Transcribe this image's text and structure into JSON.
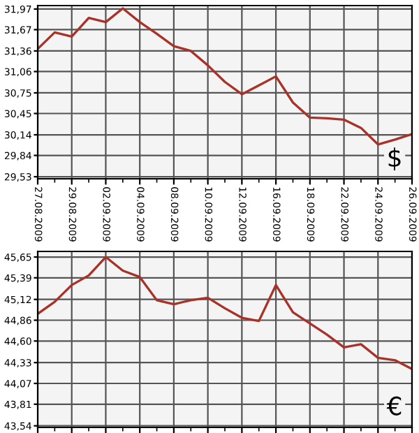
{
  "chart_data": [
    {
      "type": "line",
      "categories": [
        "27.08.2009",
        null,
        "29.08.2009",
        null,
        "02.09.2009",
        null,
        "04.09.2009",
        null,
        "08.09.2009",
        null,
        "10.09.2009",
        null,
        "12.09.2009",
        null,
        "16.09.2009",
        null,
        "18.09.2009",
        null,
        "22.09.2009",
        null,
        "24.09.2009",
        null,
        "26.09.2009"
      ],
      "series": [
        {
          "color": "#a83228",
          "values": [
            31.39,
            31.63,
            31.57,
            31.84,
            31.78,
            31.98,
            31.78,
            31.61,
            31.43,
            31.36,
            31.15,
            30.91,
            30.73,
            30.86,
            30.99,
            30.61,
            30.39,
            30.38,
            30.36,
            30.24,
            30.0,
            30.07,
            30.15
          ]
        }
      ],
      "ylim": [
        29.5,
        32.02
      ],
      "yticks": [
        {
          "value": 29.53,
          "label": "29,53"
        },
        {
          "value": 29.84,
          "label": "29,84"
        },
        {
          "value": 30.14,
          "label": "30,14"
        },
        {
          "value": 30.45,
          "label": "30,45"
        },
        {
          "value": 30.75,
          "label": "30,75"
        },
        {
          "value": 31.06,
          "label": "31,06"
        },
        {
          "value": 31.36,
          "label": "31,36"
        },
        {
          "value": 31.67,
          "label": "31,67"
        },
        {
          "value": 31.97,
          "label": "31,97"
        }
      ],
      "grid": true,
      "annotations": [
        "$"
      ]
    },
    {
      "type": "line",
      "categories": [
        "27.08.2009",
        null,
        "29.08.2009",
        null,
        "02.09.2009",
        null,
        "04.09.2009",
        null,
        "08.09.2009",
        null,
        "10.09.2009",
        null,
        "12.09.2009",
        null,
        "16.09.2009",
        null,
        "18.09.2009",
        null,
        "22.09.2009",
        null,
        "24.09.2009",
        null,
        "26.09.2009"
      ],
      "series": [
        {
          "color": "#a83228",
          "values": [
            44.94,
            45.09,
            45.3,
            45.42,
            45.65,
            45.48,
            45.4,
            45.11,
            45.06,
            45.11,
            45.14,
            45.01,
            44.89,
            44.85,
            45.3,
            44.96,
            44.82,
            44.68,
            44.52,
            44.56,
            44.39,
            44.36,
            44.25
          ]
        }
      ],
      "ylim": [
        43.52,
        45.72
      ],
      "yticks": [
        {
          "value": 43.54,
          "label": "43,54"
        },
        {
          "value": 43.81,
          "label": "43,81"
        },
        {
          "value": 44.07,
          "label": "44,07"
        },
        {
          "value": 44.33,
          "label": "44,33"
        },
        {
          "value": 44.6,
          "label": "44,60"
        },
        {
          "value": 44.86,
          "label": "44,86"
        },
        {
          "value": 45.12,
          "label": "45,12"
        },
        {
          "value": 45.39,
          "label": "45,39"
        },
        {
          "value": 45.65,
          "label": "45,65"
        }
      ],
      "grid": true,
      "tick_labels": "y",
      "annotations": [
        "€"
      ]
    }
  ]
}
